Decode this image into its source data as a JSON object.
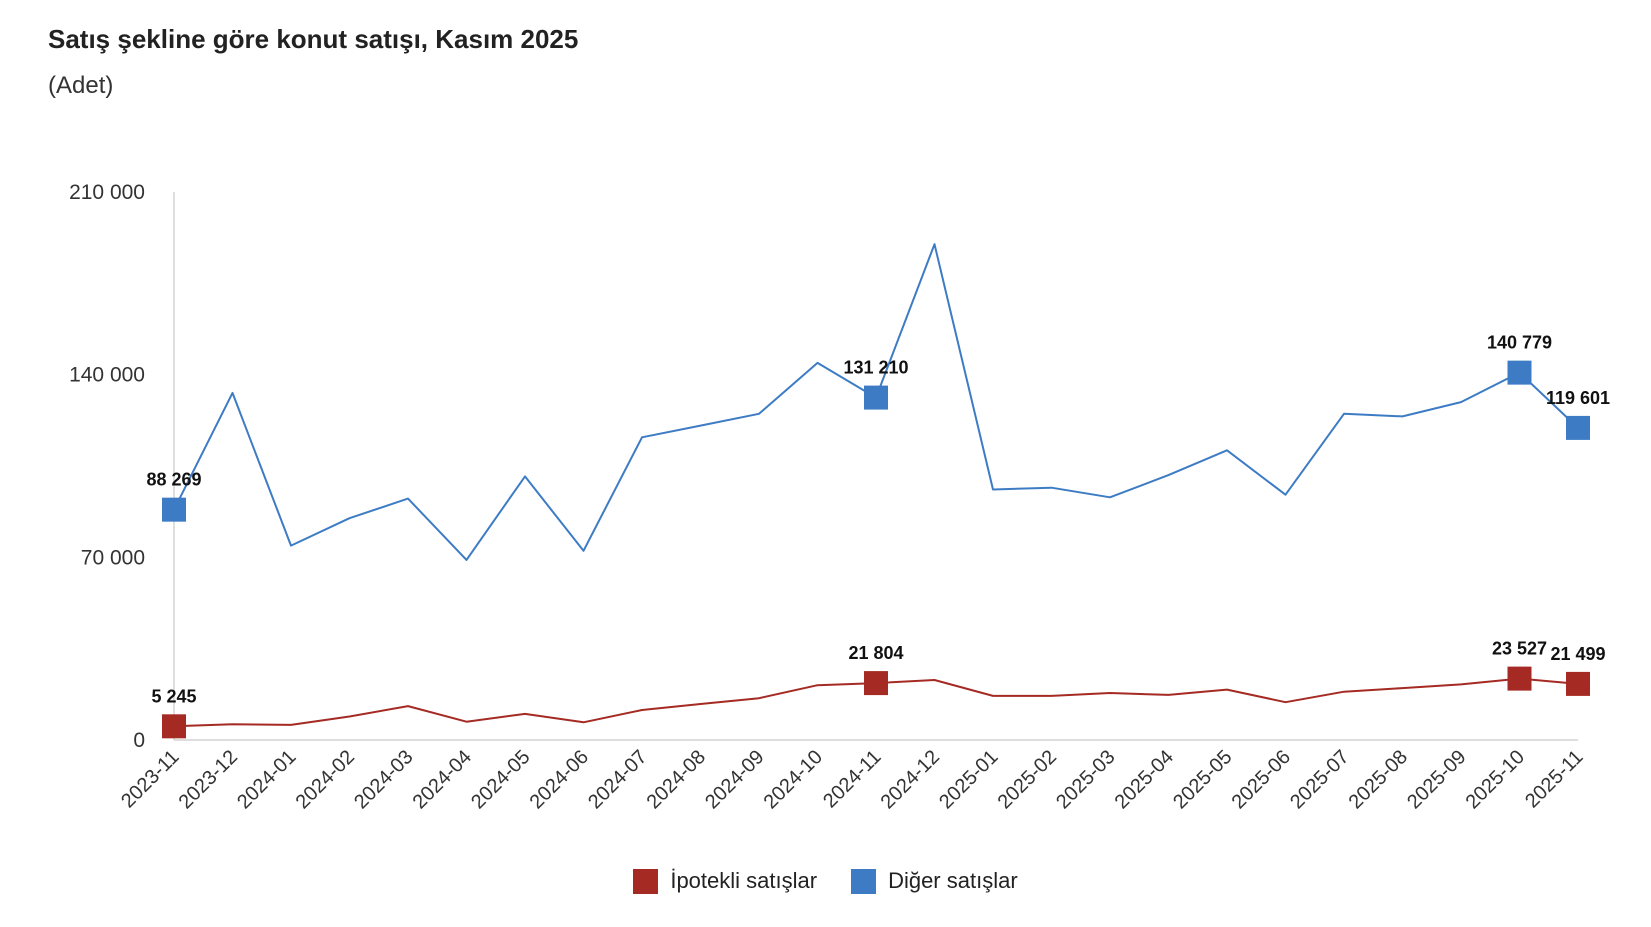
{
  "chart_data": {
    "type": "line",
    "title": "Satış şekline göre konut satışı, Kasım 2025",
    "subtitle": "(Adet)",
    "xlabel": "",
    "ylabel": "",
    "ylim": [
      0,
      210000
    ],
    "yticks": [
      0,
      70000,
      140000,
      210000
    ],
    "ytick_labels": [
      "0",
      "70 000",
      "140 000",
      "210 000"
    ],
    "grid": false,
    "legend_position": "bottom",
    "categories": [
      "2023-11",
      "2023-12",
      "2024-01",
      "2024-02",
      "2024-03",
      "2024-04",
      "2024-05",
      "2024-06",
      "2024-07",
      "2024-08",
      "2024-09",
      "2024-10",
      "2024-11",
      "2024-12",
      "2025-01",
      "2025-02",
      "2025-03",
      "2025-04",
      "2025-05",
      "2025-06",
      "2025-07",
      "2025-08",
      "2025-09",
      "2025-10",
      "2025-11"
    ],
    "series": [
      {
        "name": "İpotekli satışlar",
        "color": "#a52a23",
        "values": [
          5245,
          6000,
          5800,
          9000,
          13000,
          7000,
          10000,
          6800,
          11500,
          13800,
          16000,
          21000,
          21804,
          23000,
          16900,
          16900,
          18000,
          17300,
          19300,
          14500,
          18500,
          19900,
          21300,
          23527,
          21499
        ],
        "labels": [
          {
            "index": 0,
            "text": "5 245"
          },
          {
            "index": 12,
            "text": "21 804"
          },
          {
            "index": 23,
            "text": "23 527"
          },
          {
            "index": 24,
            "text": "21 499"
          }
        ]
      },
      {
        "name": "Diğer satışlar",
        "color": "#3d7cc4",
        "values": [
          88269,
          133000,
          74500,
          85000,
          92500,
          69000,
          101000,
          72500,
          116000,
          120500,
          125000,
          144500,
          131210,
          190000,
          96000,
          96700,
          93000,
          101500,
          111000,
          94000,
          125000,
          124000,
          129500,
          140779,
          119601
        ],
        "labels": [
          {
            "index": 0,
            "text": "88 269"
          },
          {
            "index": 12,
            "text": "131 210"
          },
          {
            "index": 23,
            "text": "140 779"
          },
          {
            "index": 24,
            "text": "119 601"
          }
        ]
      }
    ]
  }
}
